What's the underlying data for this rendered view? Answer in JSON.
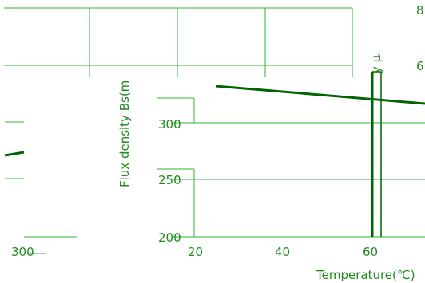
{
  "chart_data": {
    "type": "line",
    "title": "",
    "xlabel": "Temperature(℃)",
    "ylabel": "Flux density Bs(m",
    "y2label": "y μ",
    "x_tick_labels": [
      "300",
      "20",
      "40",
      "60"
    ],
    "y_tick_labels": [
      "300",
      "250",
      "200"
    ],
    "right_tick_labels": [
      "8",
      "6"
    ],
    "series": [
      {
        "x": [
          23,
          72
        ],
        "y": [
          330,
          318
        ]
      }
    ],
    "xlim": [
      20,
      72
    ],
    "ylim": [
      200,
      335
    ],
    "grid": true,
    "colors": {
      "line": "#006400",
      "grid": "#2fb52f",
      "text": "#1f8a1f"
    }
  }
}
